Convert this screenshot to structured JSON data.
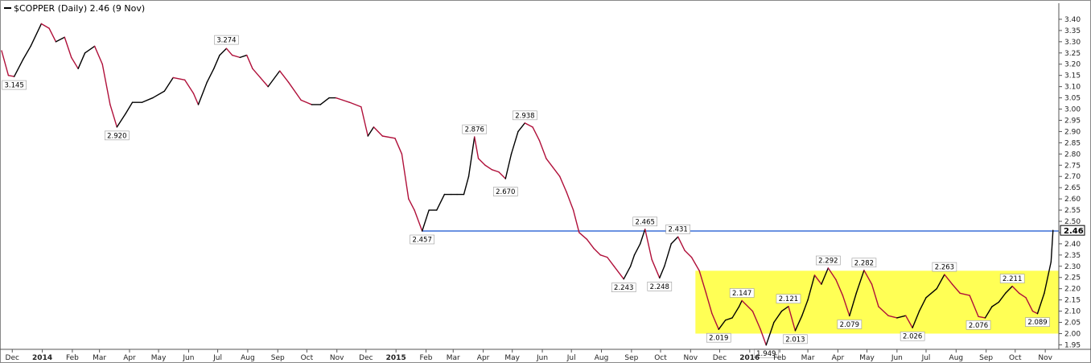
{
  "chart_data": {
    "type": "line",
    "title": "$COPPER (Daily) 2.46 (9 Nov)",
    "last_value_label": "2.46",
    "ylim": [
      1.93,
      3.45
    ],
    "y_ticks": [
      "1.95",
      "2.00",
      "2.05",
      "2.10",
      "2.15",
      "2.20",
      "2.25",
      "2.30",
      "2.35",
      "2.40",
      "2.45",
      "2.50",
      "2.55",
      "2.60",
      "2.65",
      "2.70",
      "2.75",
      "2.80",
      "2.85",
      "2.90",
      "2.95",
      "3.00",
      "3.05",
      "3.10",
      "3.15",
      "3.20",
      "3.25",
      "3.30",
      "3.35",
      "3.40"
    ],
    "x_range": [
      "2013-11-20",
      "2016-11-15"
    ],
    "x_ticks": [
      {
        "label": "Dec",
        "date": "2013-12-01",
        "year": false
      },
      {
        "label": "2014",
        "date": "2014-01-01",
        "year": true
      },
      {
        "label": "Feb",
        "date": "2014-02-01",
        "year": false
      },
      {
        "label": "Mar",
        "date": "2014-03-01",
        "year": false
      },
      {
        "label": "Apr",
        "date": "2014-04-01",
        "year": false
      },
      {
        "label": "May",
        "date": "2014-05-01",
        "year": false
      },
      {
        "label": "Jun",
        "date": "2014-06-01",
        "year": false
      },
      {
        "label": "Jul",
        "date": "2014-07-01",
        "year": false
      },
      {
        "label": "Aug",
        "date": "2014-08-01",
        "year": false
      },
      {
        "label": "Sep",
        "date": "2014-09-01",
        "year": false
      },
      {
        "label": "Oct",
        "date": "2014-10-01",
        "year": false
      },
      {
        "label": "Nov",
        "date": "2014-11-01",
        "year": false
      },
      {
        "label": "Dec",
        "date": "2014-12-01",
        "year": false
      },
      {
        "label": "2015",
        "date": "2015-01-01",
        "year": true
      },
      {
        "label": "Feb",
        "date": "2015-02-01",
        "year": false
      },
      {
        "label": "Mar",
        "date": "2015-03-01",
        "year": false
      },
      {
        "label": "Apr",
        "date": "2015-04-01",
        "year": false
      },
      {
        "label": "May",
        "date": "2015-05-01",
        "year": false
      },
      {
        "label": "Jun",
        "date": "2015-06-01",
        "year": false
      },
      {
        "label": "Jul",
        "date": "2015-07-01",
        "year": false
      },
      {
        "label": "Aug",
        "date": "2015-08-01",
        "year": false
      },
      {
        "label": "Sep",
        "date": "2015-09-01",
        "year": false
      },
      {
        "label": "Oct",
        "date": "2015-10-01",
        "year": false
      },
      {
        "label": "Nov",
        "date": "2015-11-01",
        "year": false
      },
      {
        "label": "Dec",
        "date": "2015-12-01",
        "year": false
      },
      {
        "label": "2016",
        "date": "2016-01-01",
        "year": true
      },
      {
        "label": "Feb",
        "date": "2016-02-01",
        "year": false
      },
      {
        "label": "Mar",
        "date": "2016-03-01",
        "year": false
      },
      {
        "label": "Apr",
        "date": "2016-04-01",
        "year": false
      },
      {
        "label": "May",
        "date": "2016-05-01",
        "year": false
      },
      {
        "label": "Jun",
        "date": "2016-06-01",
        "year": false
      },
      {
        "label": "Jul",
        "date": "2016-07-01",
        "year": false
      },
      {
        "label": "Aug",
        "date": "2016-08-01",
        "year": false
      },
      {
        "label": "Sep",
        "date": "2016-09-01",
        "year": false
      },
      {
        "label": "Oct",
        "date": "2016-10-01",
        "year": false
      },
      {
        "label": "Nov",
        "date": "2016-11-01",
        "year": false
      }
    ],
    "series": [
      {
        "points": [
          [
            "2013-11-20",
            3.26
          ],
          [
            "2013-11-27",
            3.15
          ],
          [
            "2013-12-03",
            3.145
          ],
          [
            "2013-12-12",
            3.22
          ],
          [
            "2013-12-20",
            3.28
          ],
          [
            "2013-12-31",
            3.38
          ],
          [
            "2014-01-08",
            3.36
          ],
          [
            "2014-01-15",
            3.3
          ],
          [
            "2014-01-24",
            3.32
          ],
          [
            "2014-01-31",
            3.23
          ],
          [
            "2014-02-07",
            3.18
          ],
          [
            "2014-02-14",
            3.25
          ],
          [
            "2014-02-24",
            3.28
          ],
          [
            "2014-03-04",
            3.2
          ],
          [
            "2014-03-12",
            3.02
          ],
          [
            "2014-03-19",
            2.92
          ],
          [
            "2014-03-28",
            2.98
          ],
          [
            "2014-04-04",
            3.03
          ],
          [
            "2014-04-14",
            3.03
          ],
          [
            "2014-04-25",
            3.05
          ],
          [
            "2014-05-07",
            3.08
          ],
          [
            "2014-05-16",
            3.14
          ],
          [
            "2014-05-28",
            3.13
          ],
          [
            "2014-06-06",
            3.07
          ],
          [
            "2014-06-11",
            3.02
          ],
          [
            "2014-06-20",
            3.12
          ],
          [
            "2014-06-27",
            3.18
          ],
          [
            "2014-07-03",
            3.24
          ],
          [
            "2014-07-10",
            3.27
          ],
          [
            "2014-07-16",
            3.24
          ],
          [
            "2014-07-24",
            3.23
          ],
          [
            "2014-07-31",
            3.24
          ],
          [
            "2014-08-06",
            3.18
          ],
          [
            "2014-08-14",
            3.14
          ],
          [
            "2014-08-22",
            3.1
          ],
          [
            "2014-09-03",
            3.17
          ],
          [
            "2014-09-12",
            3.12
          ],
          [
            "2014-09-25",
            3.04
          ],
          [
            "2014-10-06",
            3.02
          ],
          [
            "2014-10-15",
            3.02
          ],
          [
            "2014-10-24",
            3.05
          ],
          [
            "2014-10-31",
            3.05
          ],
          [
            "2014-11-07",
            3.04
          ],
          [
            "2014-11-14",
            3.03
          ],
          [
            "2014-11-26",
            3.01
          ],
          [
            "2014-12-03",
            2.88
          ],
          [
            "2014-12-09",
            2.92
          ],
          [
            "2014-12-18",
            2.88
          ],
          [
            "2014-12-31",
            2.87
          ],
          [
            "2015-01-07",
            2.8
          ],
          [
            "2015-01-14",
            2.6
          ],
          [
            "2015-01-20",
            2.55
          ],
          [
            "2015-01-28",
            2.457
          ],
          [
            "2015-02-04",
            2.55
          ],
          [
            "2015-02-12",
            2.55
          ],
          [
            "2015-02-20",
            2.62
          ],
          [
            "2015-02-27",
            2.62
          ],
          [
            "2015-03-05",
            2.62
          ],
          [
            "2015-03-12",
            2.62
          ],
          [
            "2015-03-17",
            2.7
          ],
          [
            "2015-03-23",
            2.876
          ],
          [
            "2015-03-27",
            2.78
          ],
          [
            "2015-04-03",
            2.75
          ],
          [
            "2015-04-10",
            2.73
          ],
          [
            "2015-04-17",
            2.72
          ],
          [
            "2015-04-24",
            2.69
          ],
          [
            "2015-04-30",
            2.8
          ],
          [
            "2015-05-07",
            2.9
          ],
          [
            "2015-05-14",
            2.938
          ],
          [
            "2015-05-22",
            2.92
          ],
          [
            "2015-05-29",
            2.86
          ],
          [
            "2015-06-05",
            2.78
          ],
          [
            "2015-06-12",
            2.74
          ],
          [
            "2015-06-19",
            2.7
          ],
          [
            "2015-06-26",
            2.63
          ],
          [
            "2015-07-03",
            2.55
          ],
          [
            "2015-07-09",
            2.45
          ],
          [
            "2015-07-17",
            2.42
          ],
          [
            "2015-07-24",
            2.38
          ],
          [
            "2015-07-31",
            2.35
          ],
          [
            "2015-08-07",
            2.34
          ],
          [
            "2015-08-14",
            2.3
          ],
          [
            "2015-08-24",
            2.243
          ],
          [
            "2015-08-31",
            2.3
          ],
          [
            "2015-09-04",
            2.35
          ],
          [
            "2015-09-10",
            2.4
          ],
          [
            "2015-09-15",
            2.465
          ],
          [
            "2015-09-22",
            2.33
          ],
          [
            "2015-09-30",
            2.248
          ],
          [
            "2015-10-05",
            2.3
          ],
          [
            "2015-10-12",
            2.4
          ],
          [
            "2015-10-19",
            2.431
          ],
          [
            "2015-10-26",
            2.37
          ],
          [
            "2015-11-02",
            2.34
          ],
          [
            "2015-11-10",
            2.28
          ],
          [
            "2015-11-17",
            2.18
          ],
          [
            "2015-11-23",
            2.09
          ],
          [
            "2015-11-30",
            2.019
          ],
          [
            "2015-12-07",
            2.06
          ],
          [
            "2015-12-14",
            2.07
          ],
          [
            "2015-12-21",
            2.12
          ],
          [
            "2015-12-24",
            2.147
          ],
          [
            "2016-01-04",
            2.1
          ],
          [
            "2016-01-12",
            2.02
          ],
          [
            "2016-01-18",
            1.949
          ],
          [
            "2016-01-26",
            2.05
          ],
          [
            "2016-02-03",
            2.1
          ],
          [
            "2016-02-10",
            2.121
          ],
          [
            "2016-02-17",
            2.013
          ],
          [
            "2016-02-24",
            2.08
          ],
          [
            "2016-03-01",
            2.15
          ],
          [
            "2016-03-08",
            2.26
          ],
          [
            "2016-03-15",
            2.22
          ],
          [
            "2016-03-22",
            2.292
          ],
          [
            "2016-03-30",
            2.24
          ],
          [
            "2016-04-06",
            2.17
          ],
          [
            "2016-04-13",
            2.079
          ],
          [
            "2016-04-20",
            2.18
          ],
          [
            "2016-04-28",
            2.282
          ],
          [
            "2016-05-06",
            2.22
          ],
          [
            "2016-05-13",
            2.12
          ],
          [
            "2016-05-23",
            2.08
          ],
          [
            "2016-06-01",
            2.07
          ],
          [
            "2016-06-10",
            2.08
          ],
          [
            "2016-06-17",
            2.026
          ],
          [
            "2016-06-24",
            2.1
          ],
          [
            "2016-07-01",
            2.16
          ],
          [
            "2016-07-12",
            2.2
          ],
          [
            "2016-07-20",
            2.263
          ],
          [
            "2016-07-28",
            2.22
          ],
          [
            "2016-08-05",
            2.18
          ],
          [
            "2016-08-15",
            2.17
          ],
          [
            "2016-08-24",
            2.076
          ],
          [
            "2016-08-31",
            2.07
          ],
          [
            "2016-09-07",
            2.12
          ],
          [
            "2016-09-14",
            2.14
          ],
          [
            "2016-09-21",
            2.18
          ],
          [
            "2016-09-28",
            2.211
          ],
          [
            "2016-10-05",
            2.18
          ],
          [
            "2016-10-12",
            2.16
          ],
          [
            "2016-10-19",
            2.1
          ],
          [
            "2016-10-24",
            2.089
          ],
          [
            "2016-10-31",
            2.18
          ],
          [
            "2016-11-07",
            2.32
          ],
          [
            "2016-11-09",
            2.46
          ]
        ]
      }
    ],
    "annotations": [
      {
        "label": "3.145",
        "date": "2013-12-03",
        "value": 3.145,
        "position": "below"
      },
      {
        "label": "2.920",
        "date": "2014-03-19",
        "value": 2.92,
        "position": "below"
      },
      {
        "label": "3.274",
        "date": "2014-07-10",
        "value": 3.274,
        "position": "above"
      },
      {
        "label": "2.457",
        "date": "2015-01-28",
        "value": 2.457,
        "position": "below"
      },
      {
        "label": "2.876",
        "date": "2015-03-23",
        "value": 2.876,
        "position": "above"
      },
      {
        "label": "2.670",
        "date": "2015-04-24",
        "value": 2.67,
        "position": "below"
      },
      {
        "label": "2.938",
        "date": "2015-05-14",
        "value": 2.938,
        "position": "above"
      },
      {
        "label": "2.243",
        "date": "2015-08-24",
        "value": 2.243,
        "position": "below"
      },
      {
        "label": "2.465",
        "date": "2015-09-15",
        "value": 2.465,
        "position": "above"
      },
      {
        "label": "2.248",
        "date": "2015-09-30",
        "value": 2.248,
        "position": "below"
      },
      {
        "label": "2.431",
        "date": "2015-10-19",
        "value": 2.431,
        "position": "above"
      },
      {
        "label": "2.019",
        "date": "2015-11-30",
        "value": 2.019,
        "position": "below"
      },
      {
        "label": "2.147",
        "date": "2015-12-24",
        "value": 2.147,
        "position": "above"
      },
      {
        "label": "1.949",
        "date": "2016-01-18",
        "value": 1.949,
        "position": "below"
      },
      {
        "label": "2.121",
        "date": "2016-02-10",
        "value": 2.121,
        "position": "above"
      },
      {
        "label": "2.013",
        "date": "2016-02-17",
        "value": 2.013,
        "position": "below"
      },
      {
        "label": "2.292",
        "date": "2016-03-22",
        "value": 2.292,
        "position": "above"
      },
      {
        "label": "2.079",
        "date": "2016-04-13",
        "value": 2.079,
        "position": "below"
      },
      {
        "label": "2.282",
        "date": "2016-04-28",
        "value": 2.282,
        "position": "above"
      },
      {
        "label": "2.026",
        "date": "2016-06-17",
        "value": 2.026,
        "position": "below"
      },
      {
        "label": "2.263",
        "date": "2016-07-20",
        "value": 2.263,
        "position": "above"
      },
      {
        "label": "2.076",
        "date": "2016-08-24",
        "value": 2.076,
        "position": "below"
      },
      {
        "label": "2.211",
        "date": "2016-09-28",
        "value": 2.211,
        "position": "above"
      },
      {
        "label": "2.089",
        "date": "2016-10-24",
        "value": 2.089,
        "position": "below"
      }
    ],
    "horizontal_line": {
      "value": 2.457,
      "from": "2015-01-28",
      "to": "2016-11-15",
      "color": "#3a6fd8"
    },
    "highlight_box": {
      "from": "2015-11-01",
      "to": "2016-11-15",
      "y_min": 2.0,
      "y_max": 2.28,
      "color": "#ffff55"
    },
    "colors": {
      "line_up": "#000000",
      "line_down": "#b0103a",
      "axis": "#555555"
    },
    "grid": false
  }
}
